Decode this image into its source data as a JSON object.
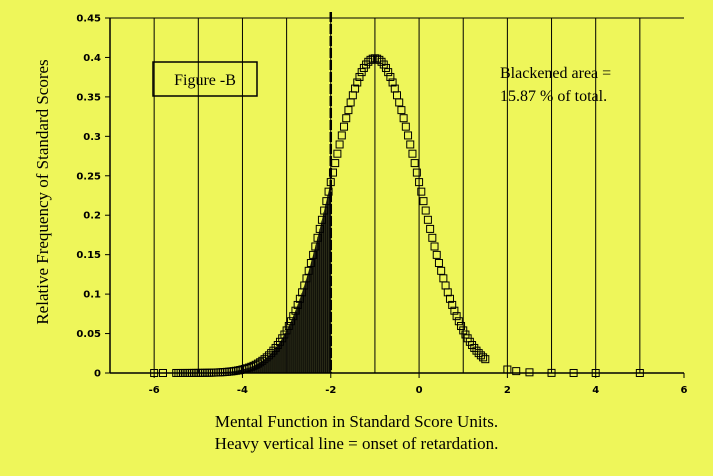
{
  "chart_data": {
    "type": "line",
    "title": "",
    "xlabel": "Mental Function in Standard Score Units.",
    "xlabel_line2": "Heavy vertical line = onset of retardation.",
    "ylabel": "Relative Frequency of Standard Scores",
    "xlim": [
      -7,
      6
    ],
    "ylim": [
      0,
      0.45
    ],
    "xticks": [
      -6,
      -4,
      -2,
      0,
      2,
      4,
      6
    ],
    "xtick_labels": [
      "-6",
      "-4",
      "-2",
      "0",
      "2",
      "4",
      "6"
    ],
    "yticks": [
      0,
      0.05,
      0.1,
      0.15,
      0.2,
      0.25,
      0.3,
      0.35,
      0.4,
      0.45
    ],
    "ytick_labels": [
      "0",
      "0.05",
      "0.1",
      "0.15",
      "0.2",
      "0.25",
      "0.3",
      "0.35",
      "0.4",
      "0.45"
    ],
    "vertical_gridlines_x": [
      -6,
      -5,
      -4,
      -3,
      -2,
      -1,
      0,
      1,
      2,
      3,
      4,
      5
    ],
    "grid": "vertical",
    "distribution": {
      "kind": "normal",
      "mean": -1,
      "sd": 1
    },
    "onset_line_x": -2,
    "shaded_region": {
      "from": -7,
      "to": -2,
      "label": "Blackened area"
    },
    "marker": "open-square",
    "annotations": {
      "figure_label": "Figure -B",
      "area_line1": "Blackened area =",
      "area_line2": "15.87 % of total."
    },
    "colors": {
      "background": "#eef65a",
      "ink": "#000000"
    }
  }
}
